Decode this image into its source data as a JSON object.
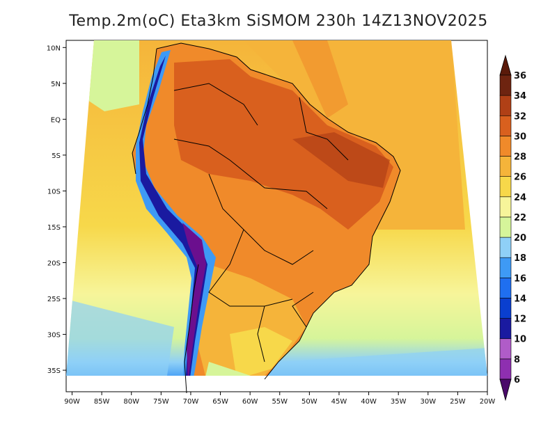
{
  "title": "Temp.2m(oC) Eta3km SiSMOM 230h 14Z13NOV2025",
  "map": {
    "lon_range": [
      -91,
      -20
    ],
    "lat_range": [
      -38,
      11
    ],
    "lon_ticks": [
      "90W",
      "85W",
      "80W",
      "75W",
      "70W",
      "65W",
      "60W",
      "55W",
      "50W",
      "45W",
      "40W",
      "35W",
      "30W",
      "25W",
      "20W"
    ],
    "lon_tick_values": [
      -90,
      -85,
      -80,
      -75,
      -70,
      -65,
      -60,
      -55,
      -50,
      -45,
      -40,
      -35,
      -30,
      -25,
      -20
    ],
    "lat_ticks": [
      "10N",
      "5N",
      "EQ",
      "5S",
      "10S",
      "15S",
      "20S",
      "25S",
      "30S",
      "35S"
    ],
    "lat_tick_values": [
      10,
      5,
      0,
      -5,
      -10,
      -15,
      -20,
      -25,
      -30,
      -35
    ]
  },
  "colorbar": {
    "labels": [
      "6",
      "8",
      "10",
      "12",
      "14",
      "16",
      "18",
      "20",
      "22",
      "24",
      "26",
      "28",
      "30",
      "32",
      "34",
      "36"
    ],
    "colors": [
      "#6b0f8e",
      "#8e2fb0",
      "#b05cc8",
      "#1a1aa0",
      "#0a3fcf",
      "#1f6ff0",
      "#3e9af5",
      "#8fd0f7",
      "#d6f59a",
      "#f7f59a",
      "#f7d84a",
      "#f5b43a",
      "#f08a2a",
      "#d9601e",
      "#b04016",
      "#6e2410"
    ],
    "cap_low_color": "#4a0a6a",
    "cap_high_color": "#5a1a0a"
  }
}
